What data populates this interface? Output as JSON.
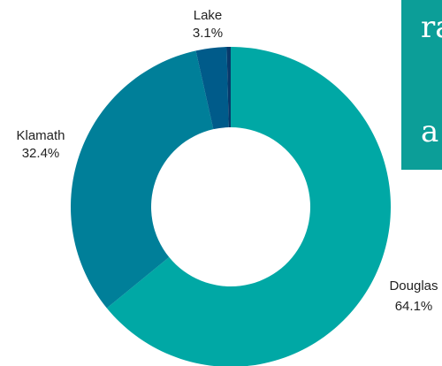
{
  "chart_data": {
    "type": "pie",
    "donut": true,
    "title": "",
    "slices": [
      {
        "label": "Douglas",
        "value": 64.1,
        "display": "64.1%",
        "color": "#00a8a5"
      },
      {
        "label": "Klamath",
        "value": 32.4,
        "display": "32.4%",
        "color": "#007f99"
      },
      {
        "label": "Lake",
        "value": 3.1,
        "display": "3.1%",
        "color": "#005b8a"
      },
      {
        "label": "",
        "value": 0.4,
        "display": "",
        "color": "#083a6b"
      }
    ]
  },
  "overlay": {
    "line1": "ra",
    "line2": "a",
    "bg_color": "#0c9e98"
  }
}
